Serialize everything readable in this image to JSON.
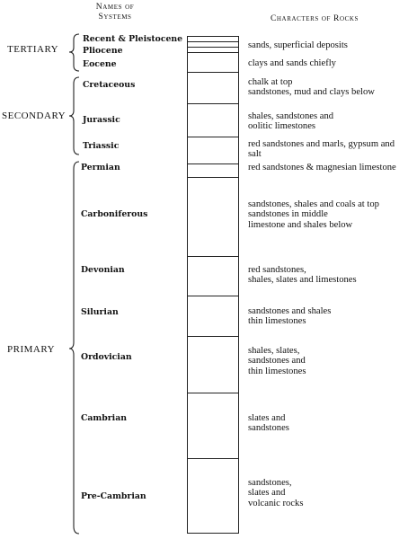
{
  "headers": {
    "names_of_systems": "Names of\nSystems",
    "characters_of_rocks": "Characters of Rocks"
  },
  "eras": {
    "tertiary": "TERTIARY",
    "secondary": "SECONDARY",
    "primary": "PRIMARY"
  },
  "systems": [
    {
      "name": "Recent & Pleistocene",
      "description": "sands, superficial deposits"
    },
    {
      "name": "Pliocene",
      "description": ""
    },
    {
      "name": "Eocene",
      "description": "clays and sands chiefly"
    },
    {
      "name": "Cretaceous",
      "description": "chalk at top\nsandstones, mud and clays below"
    },
    {
      "name": "Jurassic",
      "description": "shales, sandstones and\noolitic limestones"
    },
    {
      "name": "Triassic",
      "description": "red sandstones and marls, gypsum and\nsalt"
    },
    {
      "name": "Permian",
      "description": "red sandstones & magnesian limestone"
    },
    {
      "name": "Carboniferous",
      "description": "sandstones, shales and coals at top\nsandstones in middle\nlimestone and shales below"
    },
    {
      "name": "Devonian",
      "description": "red sandstones,\nshales, slates and limestones"
    },
    {
      "name": "Silurian",
      "description": "sandstones and shales\nthin limestones"
    },
    {
      "name": "Ordovician",
      "description": "shales, slates,\nsandstones and\nthin limestones"
    },
    {
      "name": "Cambrian",
      "description": "slates and\nsandstones"
    },
    {
      "name": "Pre-Cambrian",
      "description": "sandstones,\nslates and\nvolcanic rocks"
    }
  ]
}
